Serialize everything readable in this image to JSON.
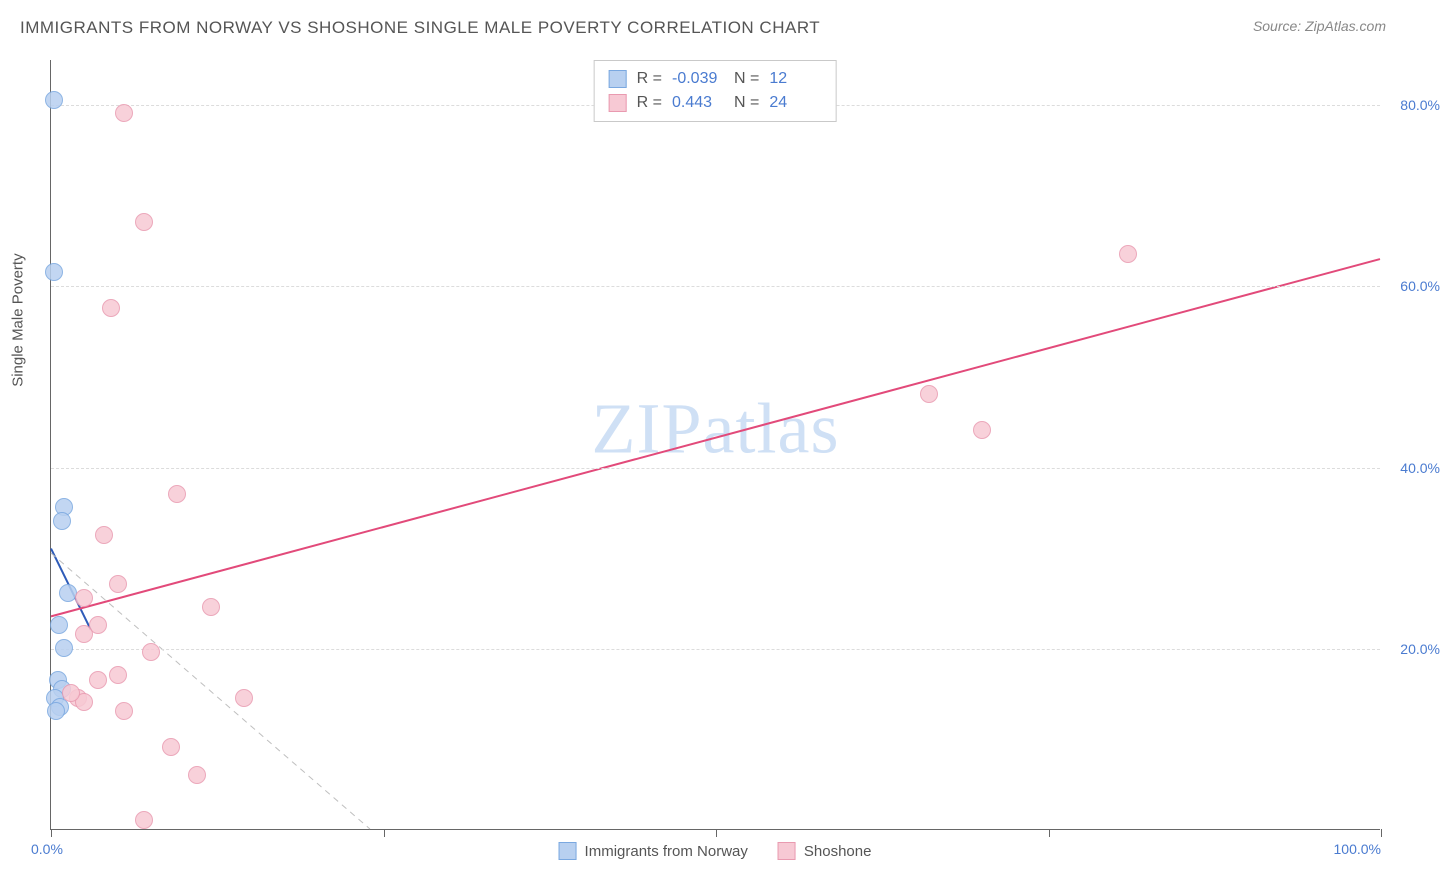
{
  "header": {
    "title": "IMMIGRANTS FROM NORWAY VS SHOSHONE SINGLE MALE POVERTY CORRELATION CHART",
    "source": "Source: ZipAtlas.com"
  },
  "watermark": {
    "part1": "ZIP",
    "part2": "atlas"
  },
  "chart": {
    "type": "scatter",
    "y_axis_label": "Single Male Poverty",
    "xlim": [
      0,
      100
    ],
    "ylim": [
      0,
      85
    ],
    "x_ticks": [
      0,
      25,
      50,
      75,
      100
    ],
    "x_tick_labels": [
      "0.0%",
      "",
      "",
      "",
      "100.0%"
    ],
    "y_gridlines": [
      20,
      40,
      60,
      80
    ],
    "y_tick_labels": [
      "20.0%",
      "40.0%",
      "60.0%",
      "80.0%"
    ],
    "grid_color": "#dcdcdc",
    "axis_color": "#666666",
    "background_color": "#ffffff",
    "tick_label_color": "#4a7bd0",
    "marker_radius": 9,
    "series": [
      {
        "name": "Immigrants from Norway",
        "fill": "#b8d0f0",
        "stroke": "#7aa8e0",
        "points": [
          [
            0.2,
            80.5
          ],
          [
            0.2,
            61.5
          ],
          [
            1.0,
            35.5
          ],
          [
            0.8,
            34.0
          ],
          [
            1.3,
            26.0
          ],
          [
            0.6,
            22.5
          ],
          [
            1.0,
            20.0
          ],
          [
            0.5,
            16.5
          ],
          [
            0.8,
            15.5
          ],
          [
            0.3,
            14.5
          ],
          [
            0.7,
            13.5
          ],
          [
            0.4,
            13.0
          ]
        ],
        "trend": {
          "x1": 0,
          "y1": 31.0,
          "x2": 3.0,
          "y2": 22.0,
          "color": "#2e5bb8",
          "width": 2
        },
        "stats": {
          "R": "-0.039",
          "N": "12"
        }
      },
      {
        "name": "Shoshone",
        "fill": "#f7c9d4",
        "stroke": "#e99ab0",
        "points": [
          [
            5.5,
            79.0
          ],
          [
            7.0,
            67.0
          ],
          [
            81.0,
            63.5
          ],
          [
            4.5,
            57.5
          ],
          [
            66.0,
            48.0
          ],
          [
            70.0,
            44.0
          ],
          [
            9.5,
            37.0
          ],
          [
            4.0,
            32.5
          ],
          [
            5.0,
            27.0
          ],
          [
            2.5,
            25.5
          ],
          [
            12.0,
            24.5
          ],
          [
            3.5,
            22.5
          ],
          [
            2.5,
            21.5
          ],
          [
            7.5,
            19.5
          ],
          [
            2.0,
            14.5
          ],
          [
            5.0,
            17.0
          ],
          [
            3.5,
            16.5
          ],
          [
            14.5,
            14.5
          ],
          [
            2.5,
            14.0
          ],
          [
            5.5,
            13.0
          ],
          [
            9.0,
            9.0
          ],
          [
            11.0,
            6.0
          ],
          [
            7.0,
            1.0
          ],
          [
            1.5,
            15.0
          ]
        ],
        "trend": {
          "x1": 0,
          "y1": 23.5,
          "x2": 100,
          "y2": 63.0,
          "color": "#e24a7a",
          "width": 2
        },
        "stats": {
          "R": "0.443",
          "N": "24"
        }
      }
    ],
    "guide_line": {
      "x1": 0,
      "y1": 30.5,
      "x2": 24,
      "y2": 0,
      "color": "#bfbfbf",
      "dash": true
    },
    "stats_box": {
      "r_label": "R =",
      "n_label": "N ="
    },
    "legend": {
      "label1": "Immigrants from Norway",
      "label2": "Shoshone"
    }
  }
}
